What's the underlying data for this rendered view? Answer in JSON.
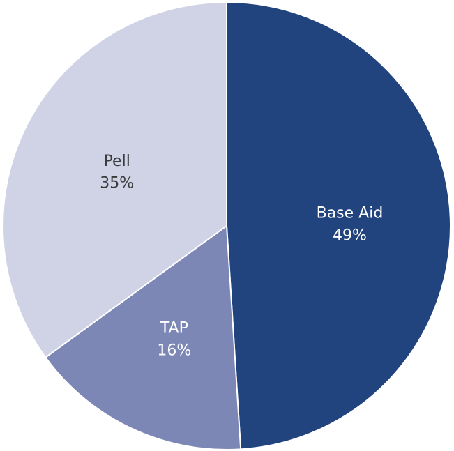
{
  "chart_data": {
    "type": "pie",
    "title": "",
    "slices": [
      {
        "name": "Base Aid",
        "value": 49,
        "percent_label": "49%",
        "color": "#21447e",
        "label_color": "#ffffff"
      },
      {
        "name": "TAP",
        "value": 16,
        "percent_label": "16%",
        "color": "#7c87b5",
        "label_color": "#ffffff"
      },
      {
        "name": "Pell",
        "value": 35,
        "percent_label": "35%",
        "color": "#d0d3e6",
        "label_color": "#3a3a3a"
      }
    ],
    "start_angle_deg": 0,
    "direction": "clockwise",
    "legend": "none"
  }
}
